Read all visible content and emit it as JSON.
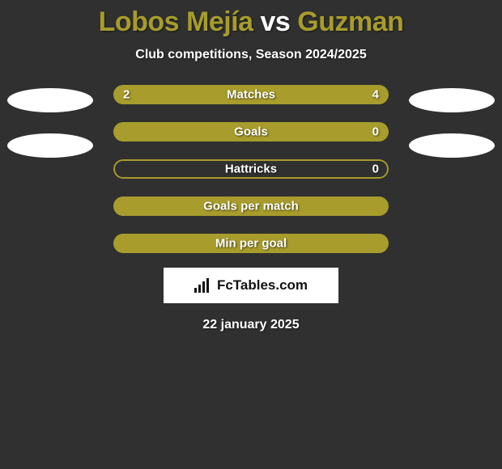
{
  "header": {
    "player1": "Lobos Mejía",
    "vs": "vs",
    "player2": "Guzman",
    "title_color_p1": "#a79c2c",
    "title_color_vs": "#ffffff",
    "title_color_p2": "#a79c2c",
    "subtitle": "Club competitions, Season 2024/2025"
  },
  "chart": {
    "bar_color": "#a79c2c",
    "border_color": "#a79c2c",
    "background_color": "#303030",
    "text_color": "#ffffff",
    "bars": [
      {
        "label": "Matches",
        "left_val": "2",
        "right_val": "4",
        "left_pct": 33.3,
        "right_pct": 66.7,
        "show_vals": true,
        "full": true
      },
      {
        "label": "Goals",
        "left_val": "",
        "right_val": "0",
        "left_pct": 100,
        "right_pct": 0,
        "show_vals": true,
        "full": false
      },
      {
        "label": "Hattricks",
        "left_val": "",
        "right_val": "0",
        "left_pct": 0,
        "right_pct": 0,
        "show_vals": true,
        "full": false
      },
      {
        "label": "Goals per match",
        "left_val": "",
        "right_val": "",
        "left_pct": 100,
        "right_pct": 0,
        "show_vals": false,
        "full": false
      },
      {
        "label": "Min per goal",
        "left_val": "",
        "right_val": "",
        "left_pct": 100,
        "right_pct": 0,
        "show_vals": false,
        "full": false
      }
    ],
    "left_placeholders": 2,
    "right_placeholders": 2
  },
  "brand": {
    "text": "FcTables.com"
  },
  "footer": {
    "date": "22 january 2025"
  }
}
